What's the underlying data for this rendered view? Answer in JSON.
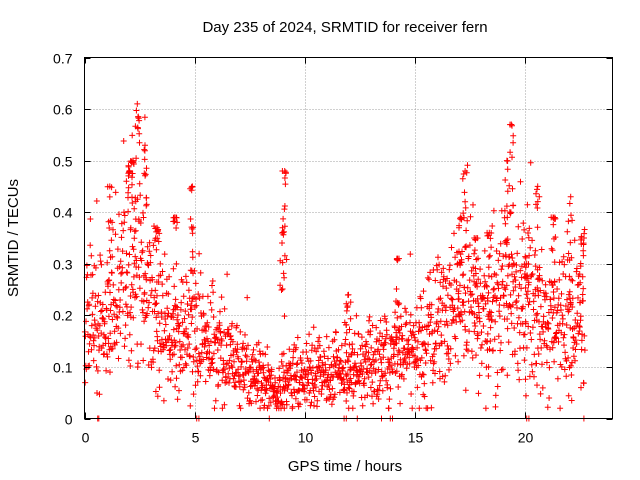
{
  "chart_data": {
    "type": "scatter",
    "title": "Day 235 of 2024, SRMTID for receiver fern",
    "xlabel": "GPS time / hours",
    "ylabel": "SRMTID / TECUs",
    "xlim": [
      0,
      24
    ],
    "ylim": [
      0,
      0.7
    ],
    "xticks": [
      0,
      5,
      10,
      15,
      20
    ],
    "yticks": [
      0,
      0.1,
      0.2,
      0.3,
      0.4,
      0.5,
      0.6,
      0.7
    ],
    "xtick_labels": [
      "0",
      "5",
      "10",
      "15",
      "20"
    ],
    "ytick_labels": [
      "0",
      "0.1",
      "0.2",
      "0.3",
      "0.4",
      "0.5",
      "0.6",
      "0.7"
    ],
    "grid": true,
    "marker": "+",
    "series_color": "#ff0000",
    "trend": {
      "x": [
        0,
        1,
        1.5,
        2,
        2.5,
        3,
        4,
        5,
        6,
        7,
        8,
        8.8,
        9,
        10,
        11,
        12,
        13,
        14,
        15,
        16,
        17,
        18,
        19,
        20,
        21,
        22,
        22.7
      ],
      "y": [
        0.17,
        0.19,
        0.23,
        0.3,
        0.3,
        0.22,
        0.15,
        0.17,
        0.13,
        0.11,
        0.08,
        0.05,
        0.08,
        0.08,
        0.085,
        0.09,
        0.1,
        0.13,
        0.13,
        0.17,
        0.22,
        0.2,
        0.22,
        0.24,
        0.18,
        0.19,
        0.2
      ]
    },
    "spikes": [
      {
        "x": 2.4,
        "y": 0.61
      },
      {
        "x": 2.2,
        "y": 0.5
      },
      {
        "x": 2.0,
        "y": 0.49
      },
      {
        "x": 1.15,
        "y": 0.45
      },
      {
        "x": 2.75,
        "y": 0.53
      },
      {
        "x": 4.9,
        "y": 0.45
      },
      {
        "x": 3.3,
        "y": 0.37
      },
      {
        "x": 4.1,
        "y": 0.39
      },
      {
        "x": 9.1,
        "y": 0.48
      },
      {
        "x": 9.0,
        "y": 0.37
      },
      {
        "x": 12.0,
        "y": 0.24
      },
      {
        "x": 14.2,
        "y": 0.31
      },
      {
        "x": 17.3,
        "y": 0.48
      },
      {
        "x": 17.1,
        "y": 0.39
      },
      {
        "x": 17.8,
        "y": 0.35
      },
      {
        "x": 18.4,
        "y": 0.36
      },
      {
        "x": 19.4,
        "y": 0.57
      },
      {
        "x": 19.2,
        "y": 0.5
      },
      {
        "x": 20.6,
        "y": 0.45
      },
      {
        "x": 21.3,
        "y": 0.39
      },
      {
        "x": 22.1,
        "y": 0.43
      },
      {
        "x": 22.6,
        "y": 0.35
      },
      {
        "x": 20.1,
        "y": 0.3
      }
    ],
    "zero_points_x": [
      0.6,
      0.65,
      5.1,
      5.2,
      8.4,
      11.8,
      11.9,
      12.4,
      13.5,
      13.9,
      14.0,
      20.1,
      20.2,
      22.7
    ]
  }
}
